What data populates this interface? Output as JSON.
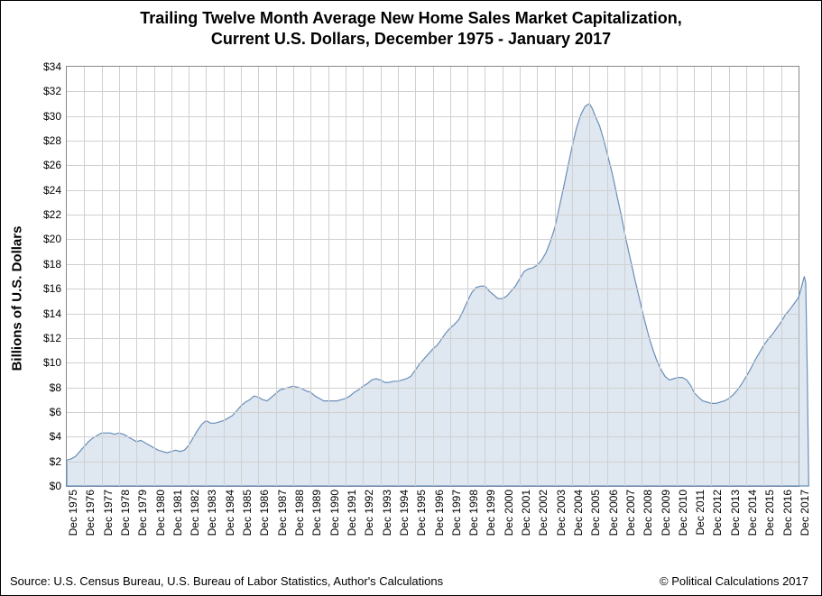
{
  "title_line1": "Trailing Twelve Month Average New Home Sales Market Capitalization,",
  "title_line2": "Current U.S. Dollars, December 1975 - January 2017",
  "title_fontsize": 18,
  "y_axis_label": "Billions of U.S. Dollars",
  "footer_source": "Source: U.S. Census Bureau, U.S. Bureau of Labor Statistics, Author's Calculations",
  "footer_copyright": "© Political Calculations 2017",
  "chart": {
    "type": "area",
    "background_color": "#ffffff",
    "grid_color": "#d0d0d0",
    "axis_color": "#888888",
    "series_fill": "#c5d4e6",
    "series_stroke": "#6a8fb8",
    "ylim": [
      0,
      34
    ],
    "ytick_step": 2,
    "ytick_prefix": "$",
    "tick_fontsize": 12,
    "x_categories": [
      "Dec 1975",
      "Dec 1976",
      "Dec 1977",
      "Dec 1978",
      "Dec 1979",
      "Dec 1980",
      "Dec 1981",
      "Dec 1982",
      "Dec 1983",
      "Dec 1984",
      "Dec 1985",
      "Dec 1986",
      "Dec 1987",
      "Dec 1988",
      "Dec 1989",
      "Dec 1990",
      "Dec 1991",
      "Dec 1992",
      "Dec 1993",
      "Dec 1994",
      "Dec 1995",
      "Dec 1996",
      "Dec 1997",
      "Dec 1998",
      "Dec 1999",
      "Dec 2000",
      "Dec 2001",
      "Dec 2002",
      "Dec 2003",
      "Dec 2004",
      "Dec 2005",
      "Dec 2006",
      "Dec 2007",
      "Dec 2008",
      "Dec 2009",
      "Dec 2010",
      "Dec 2011",
      "Dec 2012",
      "Dec 2013",
      "Dec 2014",
      "Dec 2015",
      "Dec 2016",
      "Dec 2017"
    ],
    "x_tick_step_months": 12,
    "series_points": [
      [
        0,
        2.1
      ],
      [
        3,
        2.2
      ],
      [
        6,
        2.4
      ],
      [
        9,
        2.8
      ],
      [
        12,
        3.2
      ],
      [
        15,
        3.6
      ],
      [
        18,
        3.9
      ],
      [
        21,
        4.1
      ],
      [
        24,
        4.3
      ],
      [
        27,
        4.3
      ],
      [
        30,
        4.3
      ],
      [
        33,
        4.2
      ],
      [
        36,
        4.3
      ],
      [
        39,
        4.2
      ],
      [
        42,
        4.0
      ],
      [
        45,
        3.8
      ],
      [
        48,
        3.6
      ],
      [
        51,
        3.7
      ],
      [
        54,
        3.5
      ],
      [
        57,
        3.3
      ],
      [
        60,
        3.1
      ],
      [
        63,
        2.9
      ],
      [
        66,
        2.8
      ],
      [
        69,
        2.7
      ],
      [
        72,
        2.8
      ],
      [
        75,
        2.9
      ],
      [
        78,
        2.8
      ],
      [
        81,
        2.9
      ],
      [
        84,
        3.3
      ],
      [
        87,
        3.9
      ],
      [
        90,
        4.5
      ],
      [
        93,
        5.0
      ],
      [
        96,
        5.3
      ],
      [
        99,
        5.1
      ],
      [
        102,
        5.1
      ],
      [
        105,
        5.2
      ],
      [
        108,
        5.3
      ],
      [
        111,
        5.5
      ],
      [
        114,
        5.7
      ],
      [
        117,
        6.1
      ],
      [
        120,
        6.5
      ],
      [
        123,
        6.8
      ],
      [
        126,
        7.0
      ],
      [
        129,
        7.3
      ],
      [
        132,
        7.2
      ],
      [
        135,
        7.0
      ],
      [
        138,
        6.9
      ],
      [
        141,
        7.2
      ],
      [
        144,
        7.5
      ],
      [
        147,
        7.8
      ],
      [
        150,
        7.9
      ],
      [
        153,
        8.0
      ],
      [
        156,
        8.1
      ],
      [
        159,
        8.0
      ],
      [
        162,
        7.9
      ],
      [
        165,
        7.7
      ],
      [
        168,
        7.6
      ],
      [
        171,
        7.3
      ],
      [
        174,
        7.1
      ],
      [
        177,
        6.9
      ],
      [
        180,
        6.9
      ],
      [
        183,
        6.9
      ],
      [
        186,
        6.9
      ],
      [
        189,
        7.0
      ],
      [
        192,
        7.1
      ],
      [
        195,
        7.3
      ],
      [
        198,
        7.6
      ],
      [
        201,
        7.8
      ],
      [
        204,
        8.1
      ],
      [
        207,
        8.3
      ],
      [
        210,
        8.6
      ],
      [
        213,
        8.7
      ],
      [
        216,
        8.6
      ],
      [
        219,
        8.4
      ],
      [
        222,
        8.4
      ],
      [
        225,
        8.5
      ],
      [
        228,
        8.5
      ],
      [
        231,
        8.6
      ],
      [
        234,
        8.7
      ],
      [
        237,
        8.9
      ],
      [
        240,
        9.4
      ],
      [
        243,
        9.9
      ],
      [
        246,
        10.3
      ],
      [
        249,
        10.7
      ],
      [
        252,
        11.1
      ],
      [
        255,
        11.4
      ],
      [
        258,
        11.9
      ],
      [
        261,
        12.4
      ],
      [
        264,
        12.8
      ],
      [
        267,
        13.1
      ],
      [
        270,
        13.5
      ],
      [
        273,
        14.2
      ],
      [
        276,
        15.0
      ],
      [
        279,
        15.7
      ],
      [
        282,
        16.1
      ],
      [
        285,
        16.2
      ],
      [
        288,
        16.2
      ],
      [
        291,
        15.8
      ],
      [
        294,
        15.5
      ],
      [
        297,
        15.2
      ],
      [
        300,
        15.2
      ],
      [
        303,
        15.4
      ],
      [
        306,
        15.8
      ],
      [
        309,
        16.2
      ],
      [
        312,
        16.8
      ],
      [
        315,
        17.4
      ],
      [
        318,
        17.6
      ],
      [
        321,
        17.7
      ],
      [
        324,
        17.9
      ],
      [
        327,
        18.3
      ],
      [
        330,
        18.9
      ],
      [
        333,
        19.8
      ],
      [
        336,
        20.9
      ],
      [
        339,
        22.5
      ],
      [
        342,
        24.1
      ],
      [
        345,
        25.8
      ],
      [
        348,
        27.5
      ],
      [
        351,
        29.0
      ],
      [
        354,
        30.1
      ],
      [
        357,
        30.8
      ],
      [
        360,
        31.0
      ],
      [
        362,
        30.6
      ],
      [
        364,
        30.0
      ],
      [
        367,
        29.2
      ],
      [
        370,
        28.0
      ],
      [
        373,
        26.6
      ],
      [
        376,
        25.2
      ],
      [
        379,
        23.5
      ],
      [
        382,
        21.9
      ],
      [
        385,
        20.1
      ],
      [
        388,
        18.5
      ],
      [
        391,
        16.9
      ],
      [
        394,
        15.4
      ],
      [
        397,
        13.9
      ],
      [
        400,
        12.5
      ],
      [
        403,
        11.3
      ],
      [
        406,
        10.3
      ],
      [
        409,
        9.5
      ],
      [
        412,
        8.9
      ],
      [
        415,
        8.6
      ],
      [
        418,
        8.7
      ],
      [
        421,
        8.8
      ],
      [
        424,
        8.8
      ],
      [
        427,
        8.6
      ],
      [
        430,
        8.1
      ],
      [
        432,
        7.6
      ],
      [
        435,
        7.2
      ],
      [
        438,
        6.9
      ],
      [
        441,
        6.8
      ],
      [
        444,
        6.7
      ],
      [
        447,
        6.7
      ],
      [
        450,
        6.8
      ],
      [
        453,
        6.9
      ],
      [
        456,
        7.1
      ],
      [
        459,
        7.4
      ],
      [
        462,
        7.8
      ],
      [
        465,
        8.3
      ],
      [
        468,
        8.9
      ],
      [
        471,
        9.5
      ],
      [
        474,
        10.2
      ],
      [
        477,
        10.8
      ],
      [
        480,
        11.4
      ],
      [
        483,
        11.9
      ],
      [
        486,
        12.3
      ],
      [
        489,
        12.8
      ],
      [
        492,
        13.3
      ],
      [
        495,
        13.9
      ],
      [
        498,
        14.3
      ],
      [
        501,
        14.8
      ],
      [
        504,
        15.3
      ],
      [
        505.3,
        15.8
      ],
      [
        506.6,
        16.4
      ],
      [
        508,
        17.0
      ],
      [
        509,
        16.5
      ],
      [
        510,
        9.0
      ],
      [
        511,
        0
      ]
    ],
    "series_end_drop_x": 511,
    "x_domain_max": 504
  }
}
